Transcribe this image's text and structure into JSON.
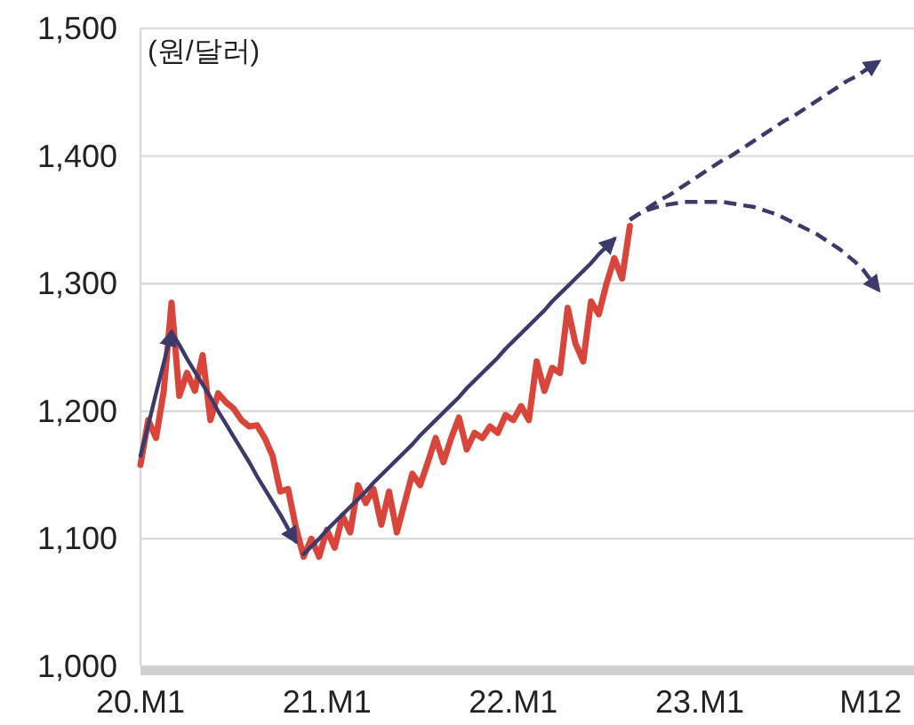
{
  "chart_data": {
    "type": "line",
    "ylabel": "(원/달러)",
    "grid": "y",
    "categories": [
      "20.M1",
      null,
      null,
      null,
      null,
      null,
      null,
      null,
      null,
      null,
      null,
      null,
      null,
      null,
      null,
      null,
      null,
      null,
      null,
      null,
      null,
      null,
      null,
      null,
      "21.M1",
      null,
      null,
      null,
      null,
      null,
      null,
      null,
      null,
      null,
      null,
      null,
      null,
      null,
      null,
      null,
      null,
      null,
      null,
      null,
      null,
      null,
      null,
      null,
      "22.M1",
      null,
      null,
      null,
      null,
      null,
      null,
      null,
      null,
      null,
      null,
      null,
      null,
      null,
      null,
      null,
      null,
      null,
      null,
      null,
      null,
      null,
      null,
      null,
      "23.M1",
      null,
      null,
      null,
      null,
      null,
      null,
      null,
      null,
      null,
      null,
      null,
      null,
      null,
      null,
      null,
      null,
      null,
      null,
      null,
      null,
      null,
      "M12",
      null
    ],
    "ylim": [
      1000,
      1500
    ],
    "yticks": [
      {
        "value": 1000,
        "label": "1,000"
      },
      {
        "value": 1100,
        "label": "1,100"
      },
      {
        "value": 1200,
        "label": "1,200"
      },
      {
        "value": 1300,
        "label": "1,300"
      },
      {
        "value": 1400,
        "label": "1,400"
      },
      {
        "value": 1500,
        "label": "1,500"
      }
    ],
    "series": [
      {
        "color": "#d9453b",
        "line_style": "solid",
        "marker": "none",
        "values": [
          1158,
          1193,
          1179,
          1216,
          1285,
          1212,
          1230,
          1216,
          1244,
          1193,
          1214,
          1207,
          1202,
          1193,
          1188,
          1189,
          1179,
          1165,
          1137,
          1139,
          1109,
          1086,
          1100,
          1086,
          1107,
          1093,
          1118,
          1105,
          1142,
          1128,
          1139,
          1111,
          1137,
          1105,
          1128,
          1151,
          1142,
          1160,
          1179,
          1160,
          1179,
          1195,
          1170,
          1183,
          1179,
          1188,
          1183,
          1197,
          1193,
          1204,
          1193,
          1239,
          1216,
          1234,
          1230,
          1281,
          1253,
          1239,
          1286,
          1276,
          1300,
          1320,
          1304,
          1345,
          null,
          null,
          null,
          null,
          null,
          null,
          null,
          null,
          null,
          null,
          null,
          null,
          null,
          null,
          null,
          null,
          null,
          null,
          null,
          null,
          null,
          null,
          null,
          null,
          null,
          null,
          null,
          null,
          null,
          null,
          null,
          null
        ]
      },
      {
        "color": "#3b3a6a",
        "line_style": "solid",
        "values": [
          1165,
          1189,
          1214,
          1238,
          1262,
          null,
          null,
          null,
          null,
          null,
          null,
          null,
          null,
          null,
          null,
          null,
          null,
          null,
          null,
          null,
          null,
          null,
          null,
          null,
          null,
          null,
          null,
          null,
          null,
          null,
          null,
          null,
          null,
          null,
          null,
          null,
          null,
          null,
          null,
          null,
          null,
          null,
          null,
          null,
          null,
          null,
          null,
          null,
          null,
          null,
          null,
          null,
          null,
          null,
          null,
          null,
          null,
          null,
          null,
          null,
          null,
          null,
          null,
          null,
          null,
          null,
          null,
          null,
          null,
          null,
          null,
          null,
          null,
          null,
          null,
          null,
          null,
          null,
          null,
          null,
          null,
          null,
          null,
          null,
          null,
          null,
          null,
          null,
          null,
          null,
          null,
          null,
          null,
          null,
          null,
          null
        ]
      },
      {
        "color": "#3b3a6a",
        "line_style": "solid",
        "values": [
          null,
          null,
          null,
          null,
          1262,
          1252,
          1241,
          1231,
          1221,
          1211,
          1200,
          1190,
          1180,
          1170,
          1160,
          1149,
          1139,
          1129,
          1119,
          1108,
          1098,
          null,
          null,
          null,
          null,
          null,
          null,
          null,
          null,
          null,
          null,
          null,
          null,
          null,
          null,
          null,
          null,
          null,
          null,
          null,
          null,
          null,
          null,
          null,
          null,
          null,
          null,
          null,
          null,
          null,
          null,
          null,
          null,
          null,
          null,
          null,
          null,
          null,
          null,
          null,
          null,
          null,
          null,
          null,
          null,
          null,
          null,
          null,
          null,
          null,
          null,
          null,
          null,
          null,
          null,
          null,
          null,
          null,
          null,
          null,
          null,
          null,
          null,
          null,
          null,
          null,
          null,
          null,
          null,
          null,
          null,
          null,
          null,
          null,
          null,
          null
        ]
      },
      {
        "color": "#3b3a6a",
        "line_style": "solid",
        "values": [
          null,
          null,
          null,
          null,
          null,
          null,
          null,
          null,
          null,
          null,
          null,
          null,
          null,
          null,
          null,
          null,
          null,
          null,
          null,
          null,
          null,
          1088,
          1094,
          1100,
          1107,
          1113,
          1119,
          1125,
          1131,
          1137,
          1144,
          1150,
          1156,
          1162,
          1168,
          1174,
          1181,
          1187,
          1193,
          1199,
          1205,
          1211,
          1218,
          1224,
          1230,
          1236,
          1242,
          1249,
          1255,
          1261,
          1267,
          1273,
          1279,
          1286,
          1292,
          1298,
          1304,
          1310,
          1316,
          1323,
          1329,
          1335,
          null,
          null,
          null,
          null,
          null,
          null,
          null,
          null,
          null,
          null,
          null,
          null,
          null,
          null,
          null,
          null,
          null,
          null,
          null,
          null,
          null,
          null,
          null,
          null,
          null,
          null,
          null,
          null,
          null,
          null,
          null,
          null,
          null,
          null
        ]
      },
      {
        "color": "#3b3a6a",
        "line_style": "dashed",
        "values": [
          null,
          null,
          null,
          null,
          null,
          null,
          null,
          null,
          null,
          null,
          null,
          null,
          null,
          null,
          null,
          null,
          null,
          null,
          null,
          null,
          null,
          null,
          null,
          null,
          null,
          null,
          null,
          null,
          null,
          null,
          null,
          null,
          null,
          null,
          null,
          null,
          null,
          null,
          null,
          null,
          null,
          null,
          null,
          null,
          null,
          null,
          null,
          null,
          null,
          null,
          null,
          null,
          null,
          null,
          null,
          null,
          null,
          null,
          null,
          null,
          null,
          null,
          null,
          1350,
          1354,
          1358,
          1362,
          1366,
          1369,
          1373,
          1377,
          1381,
          1385,
          1389,
          1393,
          1397,
          1400,
          1404,
          1408,
          1412,
          1416,
          1420,
          1424,
          1428,
          1431,
          1435,
          1439,
          1443,
          1447,
          1451,
          1455,
          1459,
          1462,
          1466,
          1470,
          1474
        ]
      },
      {
        "color": "#3b3a6a",
        "line_style": "dashed",
        "values": [
          null,
          null,
          null,
          null,
          null,
          null,
          null,
          null,
          null,
          null,
          null,
          null,
          null,
          null,
          null,
          null,
          null,
          null,
          null,
          null,
          null,
          null,
          null,
          null,
          null,
          null,
          null,
          null,
          null,
          null,
          null,
          null,
          null,
          null,
          null,
          null,
          null,
          null,
          null,
          null,
          null,
          null,
          null,
          null,
          null,
          null,
          null,
          null,
          null,
          null,
          null,
          null,
          null,
          null,
          null,
          null,
          null,
          null,
          null,
          null,
          null,
          null,
          null,
          1350,
          1354,
          1357,
          1359,
          1361,
          1362,
          1363,
          1364,
          1364,
          1364,
          1364,
          1364,
          1364,
          1363,
          1362,
          1361,
          1360,
          1358,
          1356,
          1354,
          1351,
          1348,
          1345,
          1342,
          1339,
          1335,
          1331,
          1327,
          1322,
          1317,
          1311,
          1303,
          1295
        ]
      }
    ]
  }
}
